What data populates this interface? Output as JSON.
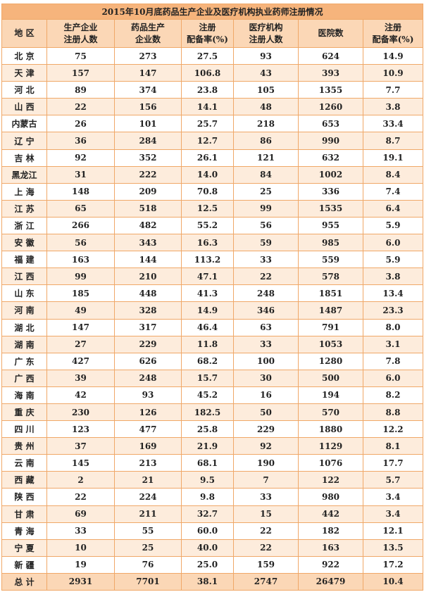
{
  "title": "2015年10月底药品生产企业及医疗机构执业药师注册情况",
  "header": [
    [
      "地 区"
    ],
    [
      "生产企业",
      "注册人数"
    ],
    [
      "药品生产",
      "企业数"
    ],
    [
      "注册",
      "配备率(%)"
    ],
    [
      "医疗机构",
      "注册人数"
    ],
    [
      "医院数"
    ],
    [
      "注册",
      "配备率(%)"
    ]
  ],
  "rows": [
    [
      "北 京",
      "75",
      "273",
      "27.5",
      "93",
      "624",
      "14.9"
    ],
    [
      "天 津",
      "157",
      "147",
      "106.8",
      "43",
      "393",
      "10.9"
    ],
    [
      "河 北",
      "89",
      "374",
      "23.8",
      "105",
      "1355",
      "7.7"
    ],
    [
      "山 西",
      "22",
      "156",
      "14.1",
      "48",
      "1260",
      "3.8"
    ],
    [
      "内蒙古",
      "26",
      "101",
      "25.7",
      "218",
      "653",
      "33.4"
    ],
    [
      "辽 宁",
      "36",
      "284",
      "12.7",
      "86",
      "990",
      "8.7"
    ],
    [
      "吉 林",
      "92",
      "352",
      "26.1",
      "121",
      "632",
      "19.1"
    ],
    [
      "黑龙江",
      "31",
      "222",
      "14.0",
      "84",
      "1002",
      "8.4"
    ],
    [
      "上 海",
      "148",
      "209",
      "70.8",
      "25",
      "336",
      "7.4"
    ],
    [
      "江 苏",
      "65",
      "518",
      "12.5",
      "99",
      "1535",
      "6.4"
    ],
    [
      "浙 江",
      "266",
      "482",
      "55.2",
      "56",
      "955",
      "5.9"
    ],
    [
      "安 徽",
      "56",
      "343",
      "16.3",
      "59",
      "985",
      "6.0"
    ],
    [
      "福 建",
      "163",
      "144",
      "113.2",
      "33",
      "559",
      "5.9"
    ],
    [
      "江 西",
      "99",
      "210",
      "47.1",
      "22",
      "578",
      "3.8"
    ],
    [
      "山 东",
      "185",
      "448",
      "41.3",
      "248",
      "1851",
      "13.4"
    ],
    [
      "河 南",
      "49",
      "328",
      "14.9",
      "346",
      "1487",
      "23.3"
    ],
    [
      "湖 北",
      "147",
      "317",
      "46.4",
      "63",
      "791",
      "8.0"
    ],
    [
      "湖 南",
      "27",
      "229",
      "11.8",
      "33",
      "1053",
      "3.1"
    ],
    [
      "广 东",
      "427",
      "626",
      "68.2",
      "100",
      "1280",
      "7.8"
    ],
    [
      "广 西",
      "39",
      "248",
      "15.7",
      "30",
      "500",
      "6.0"
    ],
    [
      "海 南",
      "42",
      "93",
      "45.2",
      "16",
      "194",
      "8.2"
    ],
    [
      "重 庆",
      "230",
      "126",
      "182.5",
      "50",
      "570",
      "8.8"
    ],
    [
      "四 川",
      "123",
      "477",
      "25.8",
      "229",
      "1880",
      "12.2"
    ],
    [
      "贵 州",
      "37",
      "169",
      "21.9",
      "92",
      "1129",
      "8.1"
    ],
    [
      "云 南",
      "145",
      "213",
      "68.1",
      "190",
      "1076",
      "17.7"
    ],
    [
      "西 藏",
      "2",
      "21",
      "9.5",
      "7",
      "122",
      "5.7"
    ],
    [
      "陕 西",
      "22",
      "224",
      "9.8",
      "33",
      "980",
      "3.4"
    ],
    [
      "甘 肃",
      "69",
      "211",
      "32.7",
      "15",
      "442",
      "3.4"
    ],
    [
      "青 海",
      "33",
      "55",
      "60.0",
      "22",
      "182",
      "12.1"
    ],
    [
      "宁 夏",
      "10",
      "25",
      "40.0",
      "22",
      "163",
      "13.5"
    ],
    [
      "新 疆",
      "19",
      "76",
      "25.0",
      "159",
      "922",
      "17.2"
    ],
    [
      "总 计",
      "2931",
      "7701",
      "38.1",
      "2747",
      "26479",
      "10.4"
    ]
  ]
}
